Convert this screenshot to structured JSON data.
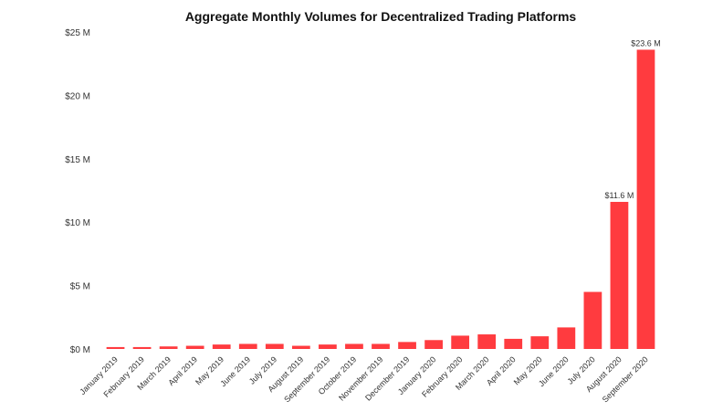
{
  "chart_data": {
    "type": "bar",
    "title": "Aggregate Monthly Volumes for Decentralized Trading Platforms",
    "xlabel": "",
    "ylabel": "",
    "ylim": [
      0,
      25
    ],
    "y_ticks": [
      0,
      5,
      10,
      15,
      20,
      25
    ],
    "y_tick_labels": [
      "$0 M",
      "$5 M",
      "$10 M",
      "$15 M",
      "$20 M",
      "$25 M"
    ],
    "grid": false,
    "bar_color": "#ff3b3f",
    "categories": [
      "January 2019",
      "February 2019",
      "March 2019",
      "April 2019",
      "May 2019",
      "June 2019",
      "July 2019",
      "August 2019",
      "September 2019",
      "October 2019",
      "November 2019",
      "December 2019",
      "January 2020",
      "February 2020",
      "March 2020",
      "April 2020",
      "May 2020",
      "June 2020",
      "July 2020",
      "August 2020",
      "September 2020"
    ],
    "values": [
      0.15,
      0.15,
      0.2,
      0.25,
      0.35,
      0.4,
      0.4,
      0.25,
      0.35,
      0.4,
      0.4,
      0.55,
      0.7,
      1.05,
      1.15,
      0.8,
      1.0,
      1.7,
      4.5,
      11.6,
      23.6
    ],
    "data_labels": [
      {
        "index": 19,
        "text": "$11.6 M"
      },
      {
        "index": 20,
        "text": "$23.6 M"
      }
    ]
  }
}
